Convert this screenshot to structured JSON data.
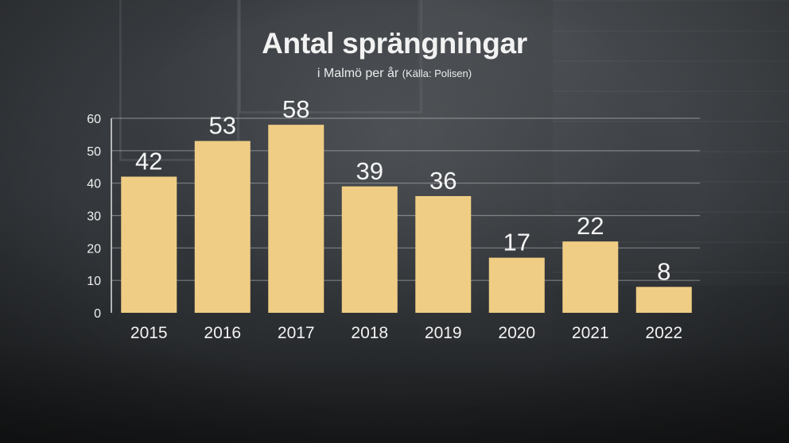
{
  "colors": {
    "bar": "#f0cd85",
    "text": "#f2f2f2"
  },
  "chart_data": {
    "type": "bar",
    "title": "Antal sprängningar",
    "subtitle": "i Malmö per år",
    "source": "(Källa: Polisen)",
    "categories": [
      "2015",
      "2016",
      "2017",
      "2018",
      "2019",
      "2020",
      "2021",
      "2022"
    ],
    "values": [
      42,
      53,
      58,
      39,
      36,
      17,
      22,
      8
    ],
    "value_labels": [
      "42",
      "53",
      "58",
      "39",
      "36",
      "17",
      "22",
      "8"
    ],
    "ylim": [
      0,
      60
    ],
    "yticks": [
      0,
      10,
      20,
      30,
      40,
      50,
      60
    ],
    "ytick_labels": [
      "0",
      "10",
      "20",
      "30",
      "40",
      "50",
      "60"
    ],
    "xlabel": "",
    "ylabel": "",
    "grid": true,
    "legend": "none"
  }
}
